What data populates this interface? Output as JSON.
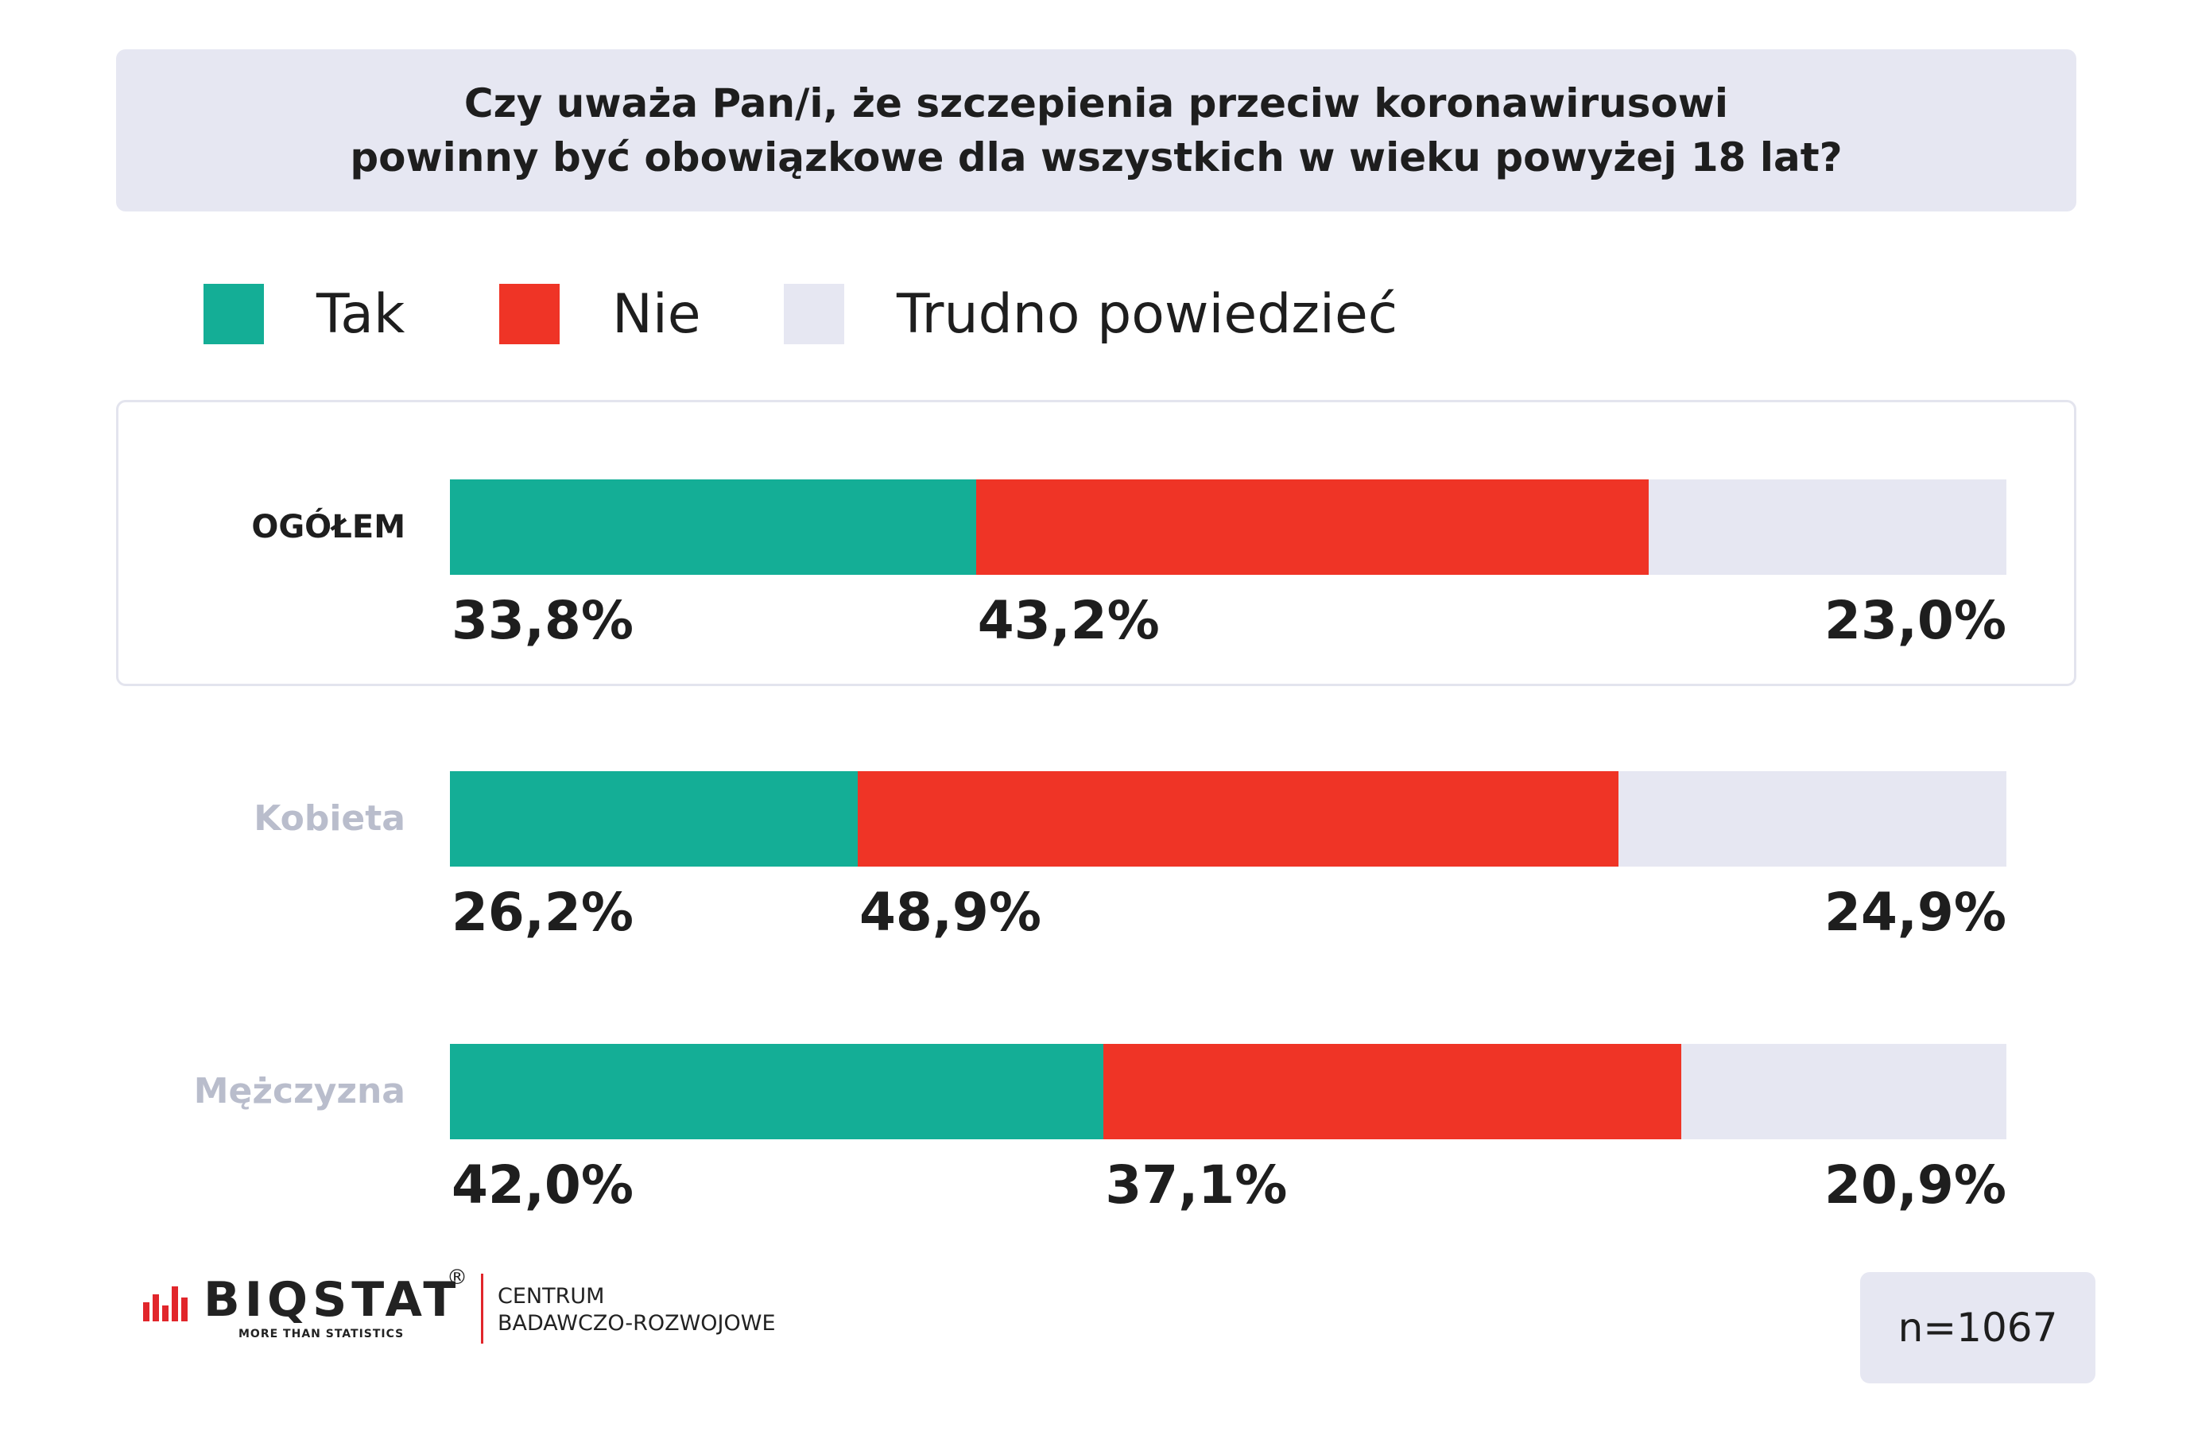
{
  "title": {
    "line1": "Czy uważa Pan/i, że szczepienia przeciw koronawirusowi",
    "line2": "powinny być obowiązkowe dla wszystkich w wieku powyżej 18 lat?"
  },
  "legend": [
    {
      "label": "Tak",
      "color": "#14ae96"
    },
    {
      "label": "Nie",
      "color": "#ef3426"
    },
    {
      "label": "Trudno powiedzieć",
      "color": "#e6e7f2"
    }
  ],
  "chart_data": {
    "type": "bar",
    "orientation": "horizontal",
    "stacked": true,
    "categories": [
      "OGÓŁEM",
      "Kobieta",
      "Mężczyzna"
    ],
    "series": [
      {
        "name": "Tak",
        "values": [
          33.8,
          26.2,
          42.0
        ],
        "labels": [
          "33,8%",
          "26,2%",
          "42,0%"
        ],
        "color": "#14ae96"
      },
      {
        "name": "Nie",
        "values": [
          43.2,
          48.9,
          37.1
        ],
        "labels": [
          "43,2%",
          "48,9%",
          "37,1%"
        ],
        "color": "#ef3426"
      },
      {
        "name": "Trudno powiedzieć",
        "values": [
          23.0,
          24.9,
          20.9
        ],
        "labels": [
          "23,0%",
          "24,9%",
          "20,9%"
        ],
        "color": "#e6e7f2"
      }
    ],
    "xlim": [
      0,
      100
    ],
    "grid": false,
    "legend_position": "top"
  },
  "category_label_colors": [
    "#1e1e1e",
    "#b9bdcc",
    "#b9bdcc"
  ],
  "footer": {
    "logo_text": "BIQSTAT",
    "logo_registered": "®",
    "logo_tagline": "MORE THAN STATISTICS",
    "logo_sub_line1": "CENTRUM",
    "logo_sub_line2": "BADAWCZO-ROZWOJOWE",
    "logo_color": "#e1262b",
    "sample_size": "n=1067"
  }
}
